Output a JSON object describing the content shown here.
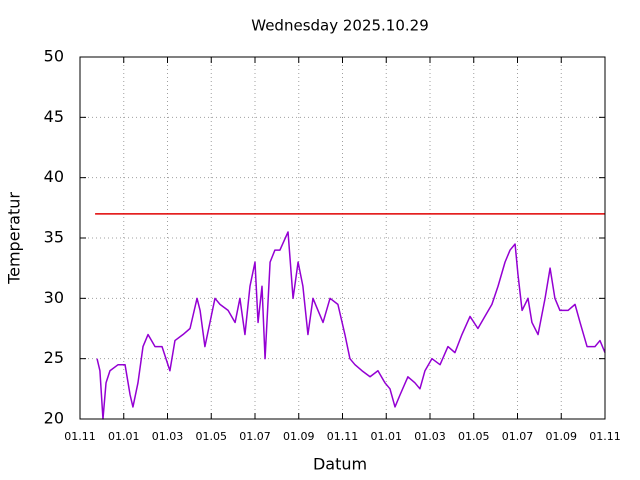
{
  "chart_data": {
    "type": "line",
    "title": "Wednesday 2025.10.29",
    "xlabel": "Datum",
    "ylabel": "Temperatur",
    "xlim": [
      0,
      24
    ],
    "xticks": [
      {
        "value": 0,
        "label": "01.11"
      },
      {
        "value": 2,
        "label": "01.01"
      },
      {
        "value": 4,
        "label": "01.03"
      },
      {
        "value": 6,
        "label": "01.05"
      },
      {
        "value": 8,
        "label": "01.07"
      },
      {
        "value": 10,
        "label": "01.09"
      },
      {
        "value": 12,
        "label": "01.11"
      },
      {
        "value": 14,
        "label": "01.01"
      },
      {
        "value": 16,
        "label": "01.03"
      },
      {
        "value": 18,
        "label": "01.05"
      },
      {
        "value": 20,
        "label": "01.07"
      },
      {
        "value": 22,
        "label": "01.09"
      },
      {
        "value": 24,
        "label": "01.11"
      }
    ],
    "ylim": [
      20,
      50
    ],
    "yticks": [
      20,
      25,
      30,
      35,
      40,
      45,
      50
    ],
    "grid": true,
    "series": [
      {
        "color": "#9400d3",
        "x": [
          0.78,
          0.91,
          1.05,
          1.19,
          1.37,
          1.74,
          2.06,
          2.29,
          2.42,
          2.65,
          2.88,
          3.11,
          3.43,
          3.75,
          4.11,
          4.34,
          4.71,
          5.03,
          5.35,
          5.49,
          5.71,
          5.94,
          6.17,
          6.4,
          6.77,
          7.09,
          7.31,
          7.54,
          7.77,
          8.0,
          8.14,
          8.32,
          8.46,
          8.69,
          8.91,
          9.14,
          9.51,
          9.74,
          9.97,
          10.19,
          10.42,
          10.65,
          10.88,
          11.11,
          11.43,
          11.79,
          12.11,
          12.34,
          12.57,
          12.89,
          13.26,
          13.62,
          13.94,
          14.17,
          14.4,
          14.63,
          14.99,
          15.31,
          15.54,
          15.77,
          16.09,
          16.46,
          16.82,
          17.14,
          17.46,
          17.83,
          18.19,
          18.51,
          18.83,
          19.11,
          19.43,
          19.66,
          19.89,
          20.02,
          20.21,
          20.48,
          20.66,
          20.94,
          21.26,
          21.49,
          21.71,
          21.94,
          22.31,
          22.63,
          22.86,
          23.18,
          23.54,
          23.77,
          24.0
        ],
        "values": [
          25,
          24,
          20,
          23,
          24,
          24.5,
          24.5,
          22,
          21,
          23,
          26,
          27,
          26,
          26,
          24,
          26.5,
          27,
          27.5,
          30,
          29,
          26,
          28,
          30,
          29.5,
          29,
          28,
          30,
          27,
          31,
          33,
          28,
          31,
          25,
          33,
          34,
          34,
          35.5,
          30,
          33,
          31,
          27,
          30,
          29,
          28,
          30,
          29.5,
          27,
          25,
          24.5,
          24,
          23.5,
          24,
          23,
          22.5,
          21,
          22,
          23.5,
          23,
          22.5,
          24,
          25,
          24.5,
          26,
          25.5,
          27,
          28.5,
          27.5,
          28.5,
          29.5,
          31,
          33,
          34,
          34.5,
          32,
          29,
          30,
          28,
          27,
          30,
          32.5,
          30,
          29,
          29,
          29.5,
          28,
          26,
          26,
          26.5,
          25.5
        ]
      },
      {
        "color": "#e00000",
        "x": [
          0.69,
          24
        ],
        "values": [
          37,
          37
        ]
      }
    ]
  }
}
